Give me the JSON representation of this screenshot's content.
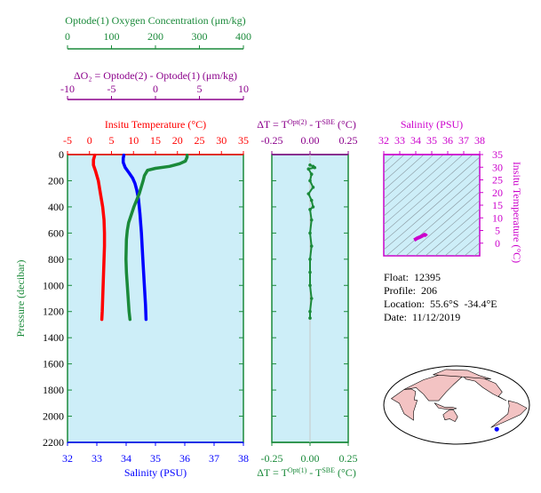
{
  "colors": {
    "oxygen": "#1a8a3a",
    "delta_o2": "#8b008b",
    "temperature": "#ff0000",
    "salinity": "#0000ff",
    "pressure_axis": "#1a8a3a",
    "ts_axis": "#cc00cc",
    "panel_bg": "#cdeef8",
    "map_land": "#f3c3c3",
    "map_ocean": "#ffffff"
  },
  "info": {
    "float_label": "Float:",
    "float": "12395",
    "profile_label": "Profile:",
    "profile": "206",
    "location_label": "Location:",
    "location": "55.6°S  -34.4°E",
    "date_label": "Date:",
    "date": "11/12/2019"
  },
  "chart_data": [
    {
      "type": "line",
      "panel": "profile",
      "ylabel": "Pressure (decibar)",
      "ylim": [
        2200,
        0
      ],
      "yticks": [
        0,
        200,
        400,
        600,
        800,
        1000,
        1200,
        1400,
        1600,
        1800,
        2000,
        2200
      ],
      "top_axis_1": {
        "label": "Optode(1) Oxygen Concentration (μm/kg)",
        "range": [
          0,
          400
        ],
        "ticks": [
          0,
          100,
          200,
          300,
          400
        ]
      },
      "top_axis_2": {
        "label": "ΔO₂ = Optode(2) - Optode(1)   (μm/kg)",
        "range": [
          -10,
          10
        ],
        "ticks": [
          -10,
          -5,
          0,
          5,
          10
        ]
      },
      "top_axis_3": {
        "label": "Insitu Temperature (°C)",
        "range": [
          -5,
          35
        ],
        "ticks": [
          -5,
          0,
          5,
          10,
          15,
          20,
          25,
          30,
          35
        ]
      },
      "bottom_axis": {
        "label": "Salinity (PSU)",
        "range": [
          32,
          38
        ],
        "ticks": [
          32,
          33,
          34,
          35,
          36,
          37,
          38
        ]
      },
      "series": [
        {
          "name": "Insitu Temperature (°C)",
          "axis": "temperature",
          "points": [
            [
              1.2,
              5
            ],
            [
              0.9,
              40
            ],
            [
              0.9,
              80
            ],
            [
              1.4,
              130
            ],
            [
              2.0,
              200
            ],
            [
              2.5,
              300
            ],
            [
              3.0,
              400
            ],
            [
              3.3,
              500
            ],
            [
              3.4,
              600
            ],
            [
              3.4,
              700
            ],
            [
              3.3,
              800
            ],
            [
              3.2,
              900
            ],
            [
              3.1,
              1000
            ],
            [
              3.0,
              1100
            ],
            [
              2.9,
              1200
            ],
            [
              2.8,
              1260
            ]
          ]
        },
        {
          "name": "Salinity (PSU)",
          "axis": "salinity",
          "points": [
            [
              33.92,
              5
            ],
            [
              33.9,
              30
            ],
            [
              33.9,
              60
            ],
            [
              33.97,
              100
            ],
            [
              34.1,
              140
            ],
            [
              34.22,
              180
            ],
            [
              34.3,
              220
            ],
            [
              34.36,
              270
            ],
            [
              34.42,
              340
            ],
            [
              34.47,
              450
            ],
            [
              34.52,
              600
            ],
            [
              34.57,
              800
            ],
            [
              34.62,
              1000
            ],
            [
              34.66,
              1150
            ],
            [
              34.68,
              1260
            ]
          ]
        },
        {
          "name": "Optode(1) Oxygen Concentration (μm/kg)",
          "axis": "oxygen",
          "points": [
            [
              272,
              5
            ],
            [
              272,
              20
            ],
            [
              268,
              50
            ],
            [
              255,
              70
            ],
            [
              232,
              90
            ],
            [
              200,
              105
            ],
            [
              182,
              120
            ],
            [
              175,
              160
            ],
            [
              172,
              200
            ],
            [
              163,
              300
            ],
            [
              157,
              350
            ],
            [
              151,
              400
            ],
            [
              145,
              460
            ],
            [
              139,
              520
            ],
            [
              136,
              580
            ],
            [
              134,
              650
            ],
            [
              133,
              800
            ],
            [
              134,
              900
            ],
            [
              136,
              1000
            ],
            [
              138,
              1100
            ],
            [
              140,
              1200
            ],
            [
              142,
              1260
            ]
          ]
        }
      ]
    },
    {
      "type": "scatter",
      "panel": "delta_t",
      "top_label": "ΔT = T^Opt(2) - T^SBE (°C)",
      "bottom_label": "ΔT = T^Opt(1) - T^SBE (°C)",
      "xlim": [
        -0.25,
        0.25
      ],
      "xticks": [
        -0.25,
        0.0,
        0.25
      ],
      "ylim": [
        2200,
        0
      ],
      "series": [
        {
          "name": "ΔT",
          "points": [
            [
              0.0,
              80
            ],
            [
              0.02,
              90
            ],
            [
              -0.01,
              110
            ],
            [
              0.03,
              100
            ],
            [
              0.01,
              150
            ],
            [
              0.0,
              200
            ],
            [
              0.02,
              250
            ],
            [
              -0.01,
              300
            ],
            [
              0.01,
              350
            ],
            [
              0.02,
              400
            ],
            [
              0.0,
              420
            ],
            [
              0.01,
              500
            ],
            [
              0.0,
              600
            ],
            [
              0.01,
              700
            ],
            [
              0.0,
              800
            ],
            [
              0.0,
              900
            ],
            [
              0.0,
              1000
            ],
            [
              0.01,
              1100
            ],
            [
              0.0,
              1200
            ],
            [
              0.0,
              1250
            ]
          ]
        }
      ]
    },
    {
      "type": "line",
      "panel": "ts_diagram",
      "xlabel": "Salinity (PSU)",
      "ylabel": "Insitu Temperature (°C)",
      "xlim": [
        32,
        38
      ],
      "xticks": [
        32,
        33,
        34,
        35,
        36,
        37,
        38
      ],
      "ylim": [
        -5,
        35
      ],
      "yticks": [
        0,
        5,
        10,
        15,
        20,
        25,
        30,
        35
      ],
      "series": [
        {
          "name": "T-S profile",
          "points": [
            [
              33.9,
              1.2
            ],
            [
              33.95,
              1.4
            ],
            [
              34.1,
              2.0
            ],
            [
              34.3,
              2.5
            ],
            [
              34.45,
              3.0
            ],
            [
              34.55,
              3.4
            ],
            [
              34.62,
              3.2
            ],
            [
              34.68,
              2.8
            ]
          ]
        }
      ]
    },
    {
      "type": "map",
      "panel": "location_map",
      "marker": {
        "lat": -55.6,
        "lon": -34.4
      }
    }
  ]
}
